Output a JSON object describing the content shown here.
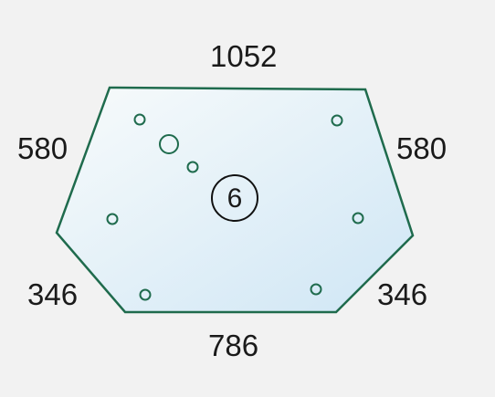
{
  "part": {
    "number": "6",
    "outline_color": "#1f6b4d",
    "fill_top": "#f8fbfb",
    "fill_bottom": "#cfe6f5"
  },
  "dimensions": {
    "top": "1052",
    "left_upper": "580",
    "right_upper": "580",
    "left_lower": "346",
    "right_lower": "346",
    "bottom": "786"
  },
  "holes": {
    "count_small": 7,
    "count_large": 1
  }
}
